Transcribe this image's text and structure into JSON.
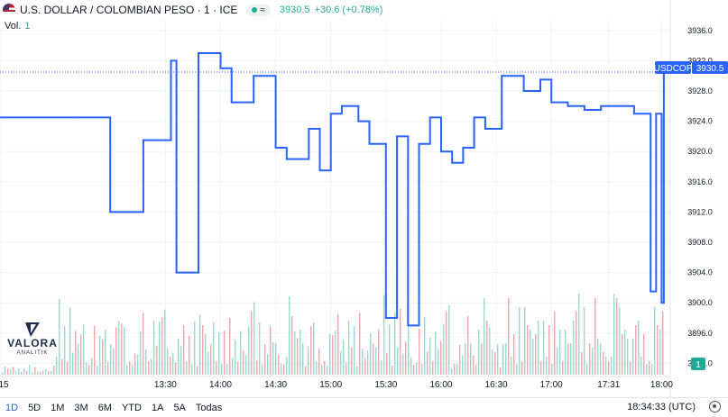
{
  "header": {
    "symbol_title": "U.S. DOLLAR / COLOMBIAN PESO · 1 · ICE",
    "status_glyph": "≈",
    "last_price": "3930.5",
    "change": "+30.6 (+0.78%)"
  },
  "volume": {
    "label": "Vol.",
    "value": "1",
    "badge": "1"
  },
  "price_tag": {
    "ticker": "USDCOP",
    "value": "3930.5"
  },
  "logo": {
    "name": "VALORA",
    "sub": "ANALITIK"
  },
  "timeframes": [
    "1D",
    "5D",
    "1M",
    "3M",
    "6M",
    "YTD",
    "1A",
    "5A",
    "Todas"
  ],
  "clock": "18:34:33 (UTC)",
  "colors": {
    "line": "#2962ff",
    "up": "#22ab94",
    "down": "#f23645",
    "grid": "#f0f3fa"
  },
  "chart_data": {
    "type": "line",
    "x_ticks": [
      "15",
      "13:30",
      "14:00",
      "14:30",
      "15:00",
      "15:30",
      "16:00",
      "16:30",
      "17:00",
      "17:31",
      "18:00"
    ],
    "y_ticks": [
      3936.0,
      3932.0,
      3928.0,
      3924.0,
      3920.0,
      3916.0,
      3912.0,
      3908.0,
      3904.0,
      3900.0,
      3896.0,
      3892.0
    ],
    "ylim": [
      3890.5,
      3937.4
    ],
    "x": [
      12.0,
      12.7,
      13.0,
      13.3,
      13.55,
      13.6,
      13.8,
      14.0,
      14.1,
      14.3,
      14.5,
      14.6,
      14.8,
      14.9,
      15.0,
      15.1,
      15.25,
      15.35,
      15.5,
      15.6,
      15.7,
      15.8,
      15.9,
      16.0,
      16.1,
      16.2,
      16.3,
      16.4,
      16.55,
      16.75,
      16.9,
      17.0,
      17.15,
      17.3,
      17.45,
      17.6,
      17.75,
      17.9,
      17.95,
      18.0,
      18.02,
      18.05
    ],
    "y": [
      3924.5,
      3924.5,
      3912.0,
      3921.5,
      3932.0,
      3904.0,
      3933.0,
      3931.0,
      3926.5,
      3930.0,
      3920.5,
      3919.0,
      3923.0,
      3917.5,
      3925.0,
      3926.0,
      3924.0,
      3921.0,
      3898.0,
      3922.0,
      3897.0,
      3921.0,
      3924.5,
      3920.0,
      3918.5,
      3920.5,
      3924.5,
      3923.0,
      3930.0,
      3928.0,
      3929.5,
      3926.5,
      3926.0,
      3925.5,
      3926.0,
      3926.0,
      3925.0,
      3901.5,
      3925.0,
      3900.0,
      3930.5,
      3930.5
    ],
    "volume": {
      "up": [
        0.12,
        0.2,
        0.35,
        0.5,
        0.75,
        0.9,
        0.6,
        0.4,
        0.3
      ],
      "down": [
        0.15,
        0.25,
        0.45,
        0.7,
        0.85,
        0.55,
        0.35
      ]
    },
    "last": 3930.5,
    "grid": true
  }
}
